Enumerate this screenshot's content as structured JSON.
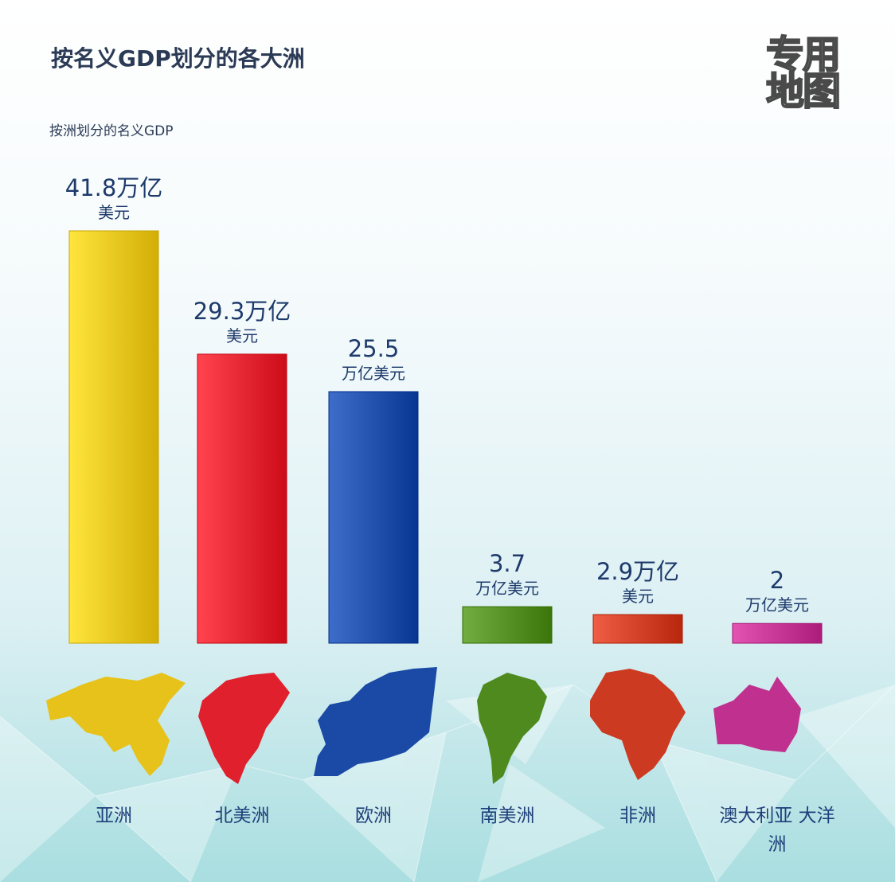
{
  "title": "按名义GDP划分的各大洲",
  "subtitle": "按洲划分的名义GDP",
  "logo_text": [
    "专用",
    "地图"
  ],
  "chart_data": {
    "type": "bar",
    "title": "按名义GDP划分的各大洲",
    "subtitle": "按洲划分的名义GDP",
    "categories": [
      "亚洲",
      "北美洲",
      "欧洲",
      "南美洲",
      "非洲",
      "澳大利亚 大洋洲"
    ],
    "values": [
      41.8,
      29.3,
      25.5,
      3.7,
      2.9,
      2
    ],
    "value_labels": [
      [
        "41.8万亿",
        "美元"
      ],
      [
        "29.3万亿",
        "美元"
      ],
      [
        "25.5",
        "万亿美元"
      ],
      [
        "3.7",
        "万亿美元"
      ],
      [
        "2.9万亿",
        "美元"
      ],
      [
        "2",
        "万亿美元"
      ]
    ],
    "category_label_lines": [
      [
        "亚洲"
      ],
      [
        "北美洲"
      ],
      [
        "欧洲"
      ],
      [
        "南美洲"
      ],
      [
        "非洲"
      ],
      [
        "澳大利亚 大洋",
        "洲"
      ]
    ],
    "colors": [
      "#e6c21a",
      "#e0202c",
      "#1b4aa6",
      "#4f8a1e",
      "#cc3a22",
      "#c0308f"
    ],
    "continent_icons": [
      "asia-map-icon",
      "north-america-map-icon",
      "europe-map-icon",
      "south-america-map-icon",
      "africa-map-icon",
      "oceania-map-icon"
    ],
    "ylim": [
      0,
      45
    ],
    "xlabel": "",
    "ylabel": "",
    "grid": false
  }
}
